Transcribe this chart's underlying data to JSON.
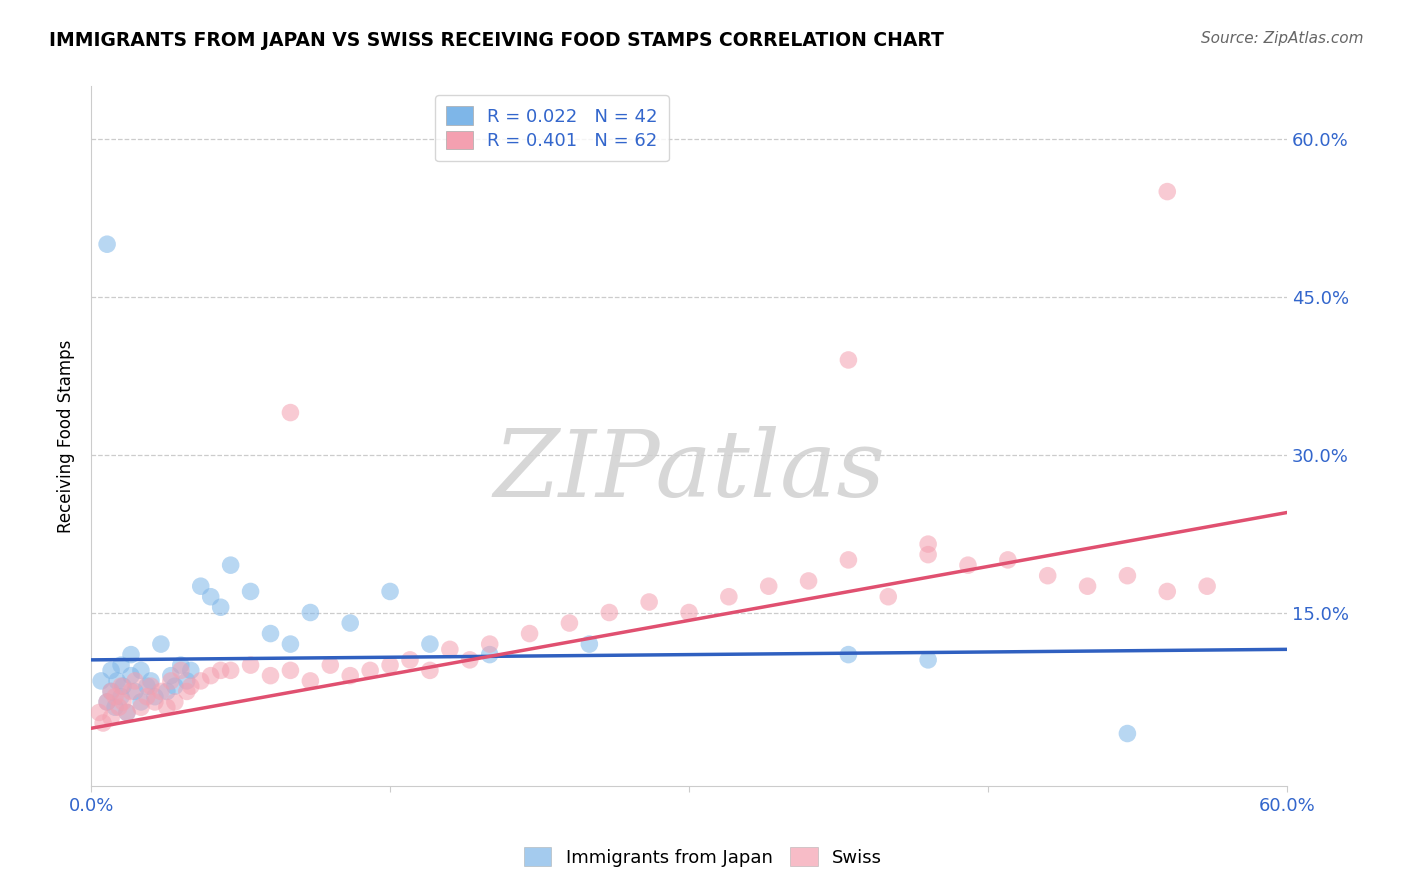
{
  "title": "IMMIGRANTS FROM JAPAN VS SWISS RECEIVING FOOD STAMPS CORRELATION CHART",
  "source": "Source: ZipAtlas.com",
  "ylabel": "Receiving Food Stamps",
  "xlim": [
    0.0,
    0.6
  ],
  "ylim": [
    -0.015,
    0.65
  ],
  "xtick_positions": [
    0.0,
    0.15,
    0.3,
    0.45,
    0.6
  ],
  "xtick_labels": [
    "0.0%",
    "",
    "",
    "",
    "60.0%"
  ],
  "ytick_positions": [
    0.0,
    0.15,
    0.3,
    0.45,
    0.6
  ],
  "ytick_labels_right": [
    "",
    "15.0%",
    "30.0%",
    "45.0%",
    "60.0%"
  ],
  "japan_color": "#7EB6E8",
  "swiss_color": "#F4A0B0",
  "japan_R": 0.022,
  "japan_N": 42,
  "swiss_R": 0.401,
  "swiss_N": 62,
  "japan_line_color": "#3060C0",
  "swiss_line_color": "#E05070",
  "watermark": "ZIPatlas",
  "watermark_color": "#D0D0D0",
  "japan_line_y0": 0.105,
  "japan_line_y1": 0.115,
  "swiss_line_y0": 0.04,
  "swiss_line_y1": 0.245,
  "japan_x": [
    0.005,
    0.008,
    0.01,
    0.01,
    0.012,
    0.013,
    0.015,
    0.015,
    0.016,
    0.018,
    0.02,
    0.02,
    0.022,
    0.025,
    0.025,
    0.028,
    0.03,
    0.032,
    0.035,
    0.038,
    0.04,
    0.042,
    0.045,
    0.048,
    0.05,
    0.055,
    0.06,
    0.065,
    0.07,
    0.08,
    0.09,
    0.1,
    0.11,
    0.13,
    0.15,
    0.17,
    0.2,
    0.25,
    0.38,
    0.42,
    0.52,
    0.008
  ],
  "japan_y": [
    0.085,
    0.065,
    0.075,
    0.095,
    0.06,
    0.085,
    0.07,
    0.1,
    0.08,
    0.055,
    0.09,
    0.11,
    0.075,
    0.065,
    0.095,
    0.08,
    0.085,
    0.07,
    0.12,
    0.075,
    0.09,
    0.08,
    0.1,
    0.085,
    0.095,
    0.175,
    0.165,
    0.155,
    0.195,
    0.17,
    0.13,
    0.12,
    0.15,
    0.14,
    0.17,
    0.12,
    0.11,
    0.12,
    0.11,
    0.105,
    0.035,
    0.5
  ],
  "swiss_x": [
    0.004,
    0.006,
    0.008,
    0.01,
    0.01,
    0.012,
    0.014,
    0.015,
    0.016,
    0.018,
    0.02,
    0.022,
    0.025,
    0.028,
    0.03,
    0.032,
    0.035,
    0.038,
    0.04,
    0.042,
    0.045,
    0.048,
    0.05,
    0.055,
    0.06,
    0.065,
    0.07,
    0.08,
    0.09,
    0.1,
    0.11,
    0.12,
    0.13,
    0.14,
    0.15,
    0.16,
    0.17,
    0.18,
    0.19,
    0.2,
    0.22,
    0.24,
    0.26,
    0.28,
    0.3,
    0.32,
    0.34,
    0.36,
    0.38,
    0.4,
    0.42,
    0.44,
    0.46,
    0.48,
    0.5,
    0.52,
    0.54,
    0.56,
    0.38,
    0.1,
    0.42,
    0.54
  ],
  "swiss_y": [
    0.055,
    0.045,
    0.065,
    0.075,
    0.05,
    0.07,
    0.06,
    0.08,
    0.065,
    0.055,
    0.075,
    0.085,
    0.06,
    0.07,
    0.08,
    0.065,
    0.075,
    0.06,
    0.085,
    0.065,
    0.095,
    0.075,
    0.08,
    0.085,
    0.09,
    0.095,
    0.095,
    0.1,
    0.09,
    0.095,
    0.085,
    0.1,
    0.09,
    0.095,
    0.1,
    0.105,
    0.095,
    0.115,
    0.105,
    0.12,
    0.13,
    0.14,
    0.15,
    0.16,
    0.15,
    0.165,
    0.175,
    0.18,
    0.2,
    0.165,
    0.215,
    0.195,
    0.2,
    0.185,
    0.175,
    0.185,
    0.17,
    0.175,
    0.39,
    0.34,
    0.205,
    0.55
  ]
}
